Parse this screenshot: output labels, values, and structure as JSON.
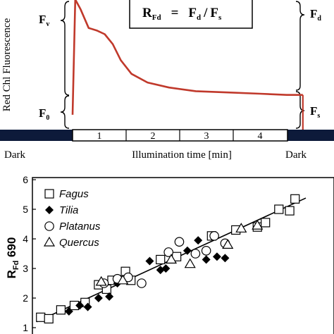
{
  "colors": {
    "kinetic_curve": "#c0392b",
    "dark_bar": "#0d1a3a",
    "ink": "#000000"
  },
  "top_panel": {
    "ylabel": "Red Chl Fluorescence",
    "formula": {
      "lhs": "R",
      "lhs_sub": "Fd",
      "eq": "=",
      "rhs": "F",
      "rhs_sub1": "d",
      "slash": "/",
      "rhs2": "F",
      "rhs_sub2": "s"
    },
    "labels": {
      "fv": "F",
      "fv_sub": "v",
      "f0": "F",
      "f0_sub": "0",
      "fd": "F",
      "fd_sub": "d",
      "fs": "F",
      "fs_sub": "s"
    },
    "time_segments": [
      "1",
      "2",
      "3",
      "4"
    ],
    "dark_left": "Dark",
    "dark_right": "Dark",
    "xlabel": "Illumination time [min]"
  },
  "chart_data": [
    {
      "type": "line",
      "title": "",
      "xlabel": "Illumination time [min]",
      "ylabel": "Red Chl Fluorescence",
      "series": [
        {
          "x": [
            0,
            0.05,
            0.15,
            0.3,
            0.45,
            0.6,
            0.75,
            0.9,
            1.1,
            1.4,
            1.8,
            2.3,
            2.9,
            3.5,
            4.0,
            4.3
          ],
          "values": [
            0.12,
            1.05,
            0.97,
            0.82,
            0.8,
            0.77,
            0.69,
            0.56,
            0.45,
            0.38,
            0.34,
            0.31,
            0.3,
            0.29,
            0.28,
            0.28
          ]
        }
      ],
      "xlim": [
        -1.0,
        5.0
      ],
      "grid": false
    },
    {
      "type": "scatter",
      "title": "",
      "xlabel": "",
      "ylabel": "R",
      "ylabel_sub": "Fd",
      "ylabel_suffix": " 690",
      "ylim": [
        1,
        6
      ],
      "yticks": [
        "1",
        "2",
        "3",
        "4",
        "5",
        "6"
      ],
      "xlim": [
        0,
        10
      ],
      "legend_position": "top-left",
      "legend": [
        "Fagus",
        "Tilia",
        "Platanus",
        "Quercus"
      ],
      "series": [
        {
          "name": "Fagus",
          "marker": "square",
          "x": [
            0.15,
            0.45,
            0.9,
            1.4,
            1.8,
            2.3,
            2.6,
            2.8,
            3.3,
            3.5,
            4.6,
            5.2,
            6.5,
            7.4,
            8.2,
            8.5,
            9.0,
            9.4,
            9.6
          ],
          "y": [
            1.35,
            1.3,
            1.6,
            1.75,
            1.85,
            2.45,
            2.3,
            2.6,
            2.9,
            2.6,
            3.3,
            3.4,
            4.1,
            4.3,
            4.4,
            4.55,
            5.0,
            4.95,
            5.35
          ]
        },
        {
          "name": "Tilia",
          "marker": "diamond",
          "x": [
            1.2,
            1.6,
            1.9,
            2.3,
            2.7,
            3.0,
            4.2,
            4.6,
            4.8,
            5.6,
            6.0,
            6.3,
            6.7,
            7.0
          ],
          "y": [
            1.55,
            1.75,
            1.7,
            2.0,
            2.05,
            2.5,
            3.25,
            2.95,
            3.0,
            3.6,
            3.95,
            3.3,
            3.4,
            3.35
          ]
        },
        {
          "name": "Platanus",
          "marker": "circle",
          "x": [
            2.5,
            3.0,
            3.4,
            3.9,
            4.9,
            5.3,
            5.9,
            6.3,
            6.6,
            7.0
          ],
          "y": [
            2.5,
            2.65,
            2.7,
            2.5,
            3.55,
            3.9,
            3.5,
            3.6,
            4.1,
            3.85
          ]
        },
        {
          "name": "Quercus",
          "marker": "triangle",
          "x": [
            2.4,
            3.2,
            5.0,
            5.7,
            7.1,
            7.6,
            8.2
          ],
          "y": [
            2.55,
            2.6,
            3.3,
            3.15,
            3.8,
            4.35,
            4.45
          ]
        }
      ],
      "regression_line": {
        "x": [
          0,
          10
        ],
        "y": [
          1.2,
          5.38
        ]
      }
    }
  ]
}
